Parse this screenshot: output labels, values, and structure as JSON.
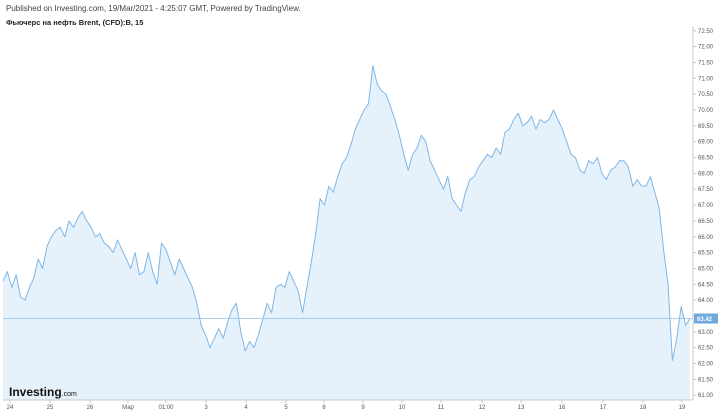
{
  "header": {
    "published": "Published on Investing.com, 19/Mar/2021 - 4:25:07 GMT, Powered by TradingView.",
    "instrument": "Фьючерс на нефть Brent, (CFD):B, 15"
  },
  "branding": {
    "logo_main": "Investing",
    "logo_suffix": ".com"
  },
  "colors": {
    "line": "#7fb6e6",
    "fill": "#e6f2fb",
    "last_line": "#9cc7ea",
    "badge": "#6fa9de",
    "axis": "#c8c8c8"
  },
  "chart_data": {
    "type": "area",
    "title": "Фьючерс на нефть Brent, (CFD):B, 15",
    "xlabel": "",
    "ylabel": "",
    "ylim": [
      60.85,
      72.65
    ],
    "y_ticks": [
      "72.50",
      "72.00",
      "71.50",
      "71.00",
      "70.50",
      "70.00",
      "69.50",
      "69.00",
      "68.50",
      "68.00",
      "67.50",
      "67.00",
      "66.50",
      "66.00",
      "65.50",
      "65.00",
      "64.50",
      "64.00",
      "63.50",
      "63.00",
      "62.50",
      "62.00",
      "61.50",
      "61.00"
    ],
    "x_ticks": [
      "24",
      "25",
      "26",
      "Мар",
      "01:00",
      "3",
      "4",
      "5",
      "6",
      "9",
      "10",
      "11",
      "12",
      "13",
      "16",
      "17",
      "18",
      "19"
    ],
    "last_value": 63.42,
    "last_label": "63.42",
    "grid": false,
    "series": [
      {
        "values": [
          64.6,
          64.9,
          64.4,
          64.8,
          64.1,
          64.0,
          64.4,
          64.7,
          65.3,
          65.0,
          65.7,
          66.0,
          66.2,
          66.3,
          66.0,
          66.5,
          66.3,
          66.6,
          66.8,
          66.5,
          66.3,
          66.0,
          66.1,
          65.8,
          65.7,
          65.5,
          65.9,
          65.6,
          65.3,
          65.0,
          65.5,
          64.8,
          64.9,
          65.5,
          64.9,
          64.5,
          65.8,
          65.6,
          65.2,
          64.8,
          65.3,
          65.0,
          64.7,
          64.4,
          63.9,
          63.2,
          62.9,
          62.5,
          62.8,
          63.1,
          62.8,
          63.3,
          63.7,
          63.9,
          63.0,
          62.4,
          62.7,
          62.5,
          62.9,
          63.4,
          63.9,
          63.6,
          64.4,
          64.5,
          64.4,
          64.9,
          64.6,
          64.3,
          63.6,
          64.4,
          65.2,
          66.1,
          67.2,
          67.0,
          67.6,
          67.4,
          67.9,
          68.3,
          68.5,
          68.9,
          69.4,
          69.7,
          70.0,
          70.2,
          71.4,
          70.8,
          70.6,
          70.5,
          70.1,
          69.7,
          69.2,
          68.6,
          68.1,
          68.6,
          68.8,
          69.2,
          69.0,
          68.4,
          68.1,
          67.8,
          67.5,
          67.9,
          67.2,
          67.0,
          66.8,
          67.4,
          67.8,
          67.9,
          68.2,
          68.4,
          68.6,
          68.5,
          68.8,
          68.6,
          69.3,
          69.4,
          69.7,
          69.9,
          69.5,
          69.6,
          69.8,
          69.4,
          69.7,
          69.6,
          69.7,
          70.0,
          69.7,
          69.4,
          69.0,
          68.6,
          68.5,
          68.1,
          68.0,
          68.4,
          68.3,
          68.5,
          68.0,
          67.8,
          68.1,
          68.2,
          68.4,
          68.4,
          68.2,
          67.6,
          67.8,
          67.6,
          67.6,
          67.9,
          67.4,
          66.9,
          65.6,
          64.5,
          62.1,
          62.8,
          63.8,
          63.2,
          63.42
        ]
      }
    ]
  }
}
